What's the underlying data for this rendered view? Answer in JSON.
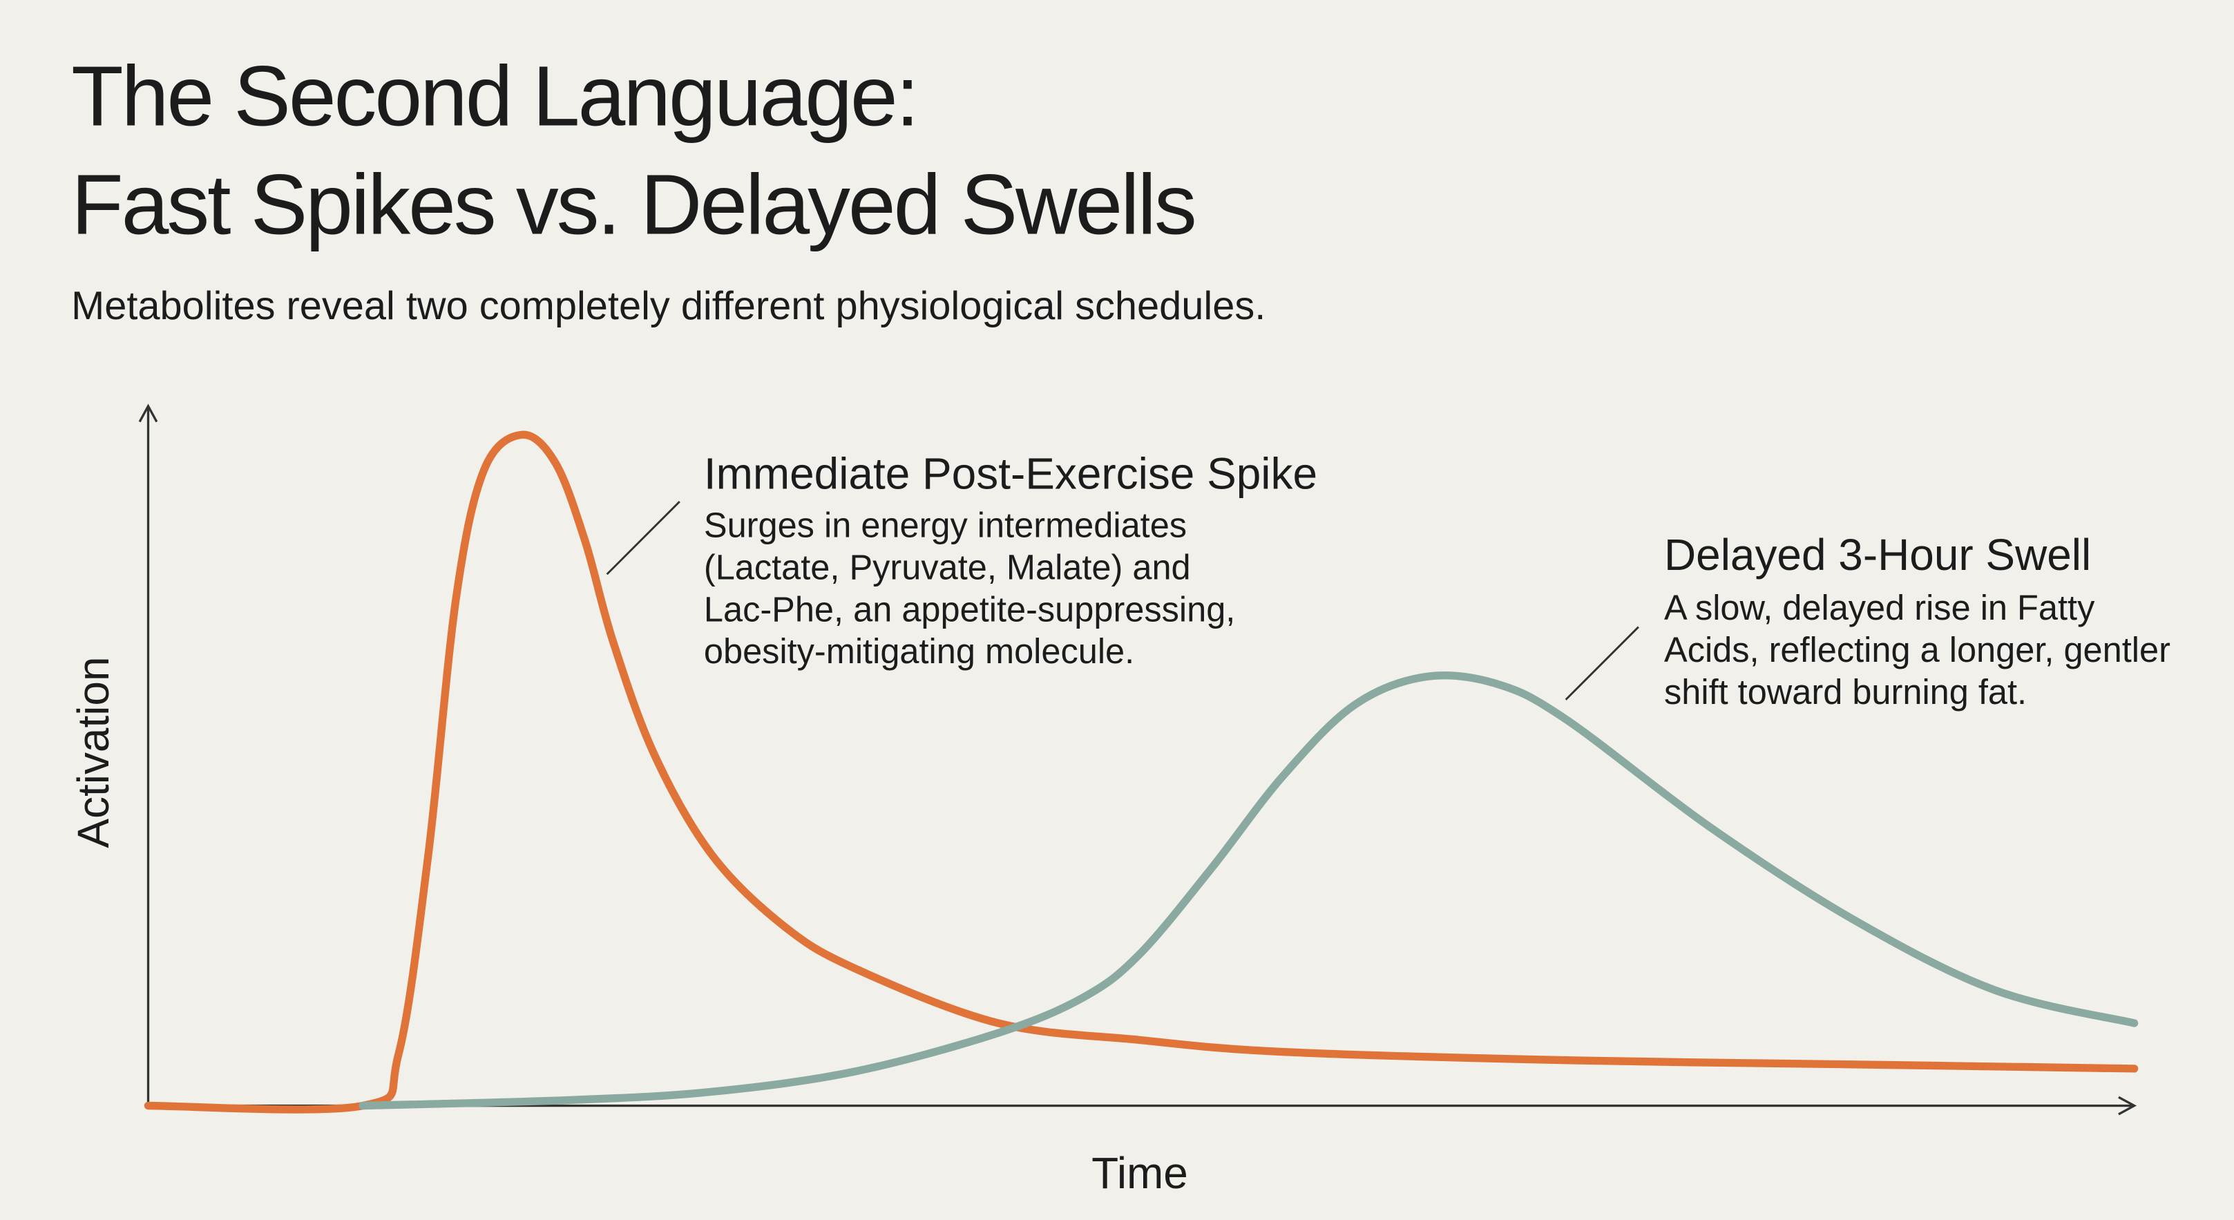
{
  "chart_data": {
    "type": "line",
    "title": [
      "The Second Language:",
      "Fast Spikes vs. Delayed Swells"
    ],
    "subtitle": "Metabolites reveal two completely different physiological schedules.",
    "xlabel": "Time",
    "ylabel": "Activation",
    "xlim": [
      0,
      100
    ],
    "ylim": [
      0,
      100
    ],
    "series": [
      {
        "color": "#e07438",
        "x": [
          0,
          10.8,
          12.6,
          14.1,
          15.5,
          16.9,
          18.8,
          20.5,
          22.0,
          23.4,
          25.5,
          28.4,
          32.0,
          35.6,
          42.8,
          49.9,
          57.1,
          71.4,
          85.8,
          100
        ],
        "values": [
          0,
          0,
          7.3,
          35.8,
          72.5,
          90.8,
          95.9,
          91.9,
          80.7,
          66.4,
          50.1,
          35.8,
          25.7,
          19.6,
          11.8,
          9.4,
          7.7,
          6.5,
          5.9,
          5.3
        ]
      },
      {
        "color": "#8aa9a0",
        "x": [
          10.8,
          21.2,
          28.4,
          35.6,
          42.8,
          47.1,
          49.9,
          53.5,
          57.1,
          60.7,
          64.3,
          67.9,
          71.4,
          78.6,
          85.8,
          93.0,
          100
        ],
        "values": [
          0,
          0.8,
          2.0,
          4.9,
          10.4,
          15.5,
          21.6,
          33.8,
          47.0,
          57.2,
          61.3,
          60.3,
          55.2,
          39.9,
          26.7,
          16.5,
          11.8
        ]
      }
    ],
    "annotations": [
      {
        "title": "Immediate Post-Exercise Spike",
        "lines": [
          "Surges in energy intermediates",
          "(Lactate, Pyruvate, Malate) and",
          "Lac-Phe, an appetite-suppressing,",
          "obesity-mitigating molecule."
        ]
      },
      {
        "title": "Delayed 3-Hour Swell",
        "lines": [
          "A slow, delayed rise in Fatty",
          "Acids, reflecting a longer, gentler",
          "shift toward burning fat."
        ]
      }
    ]
  }
}
